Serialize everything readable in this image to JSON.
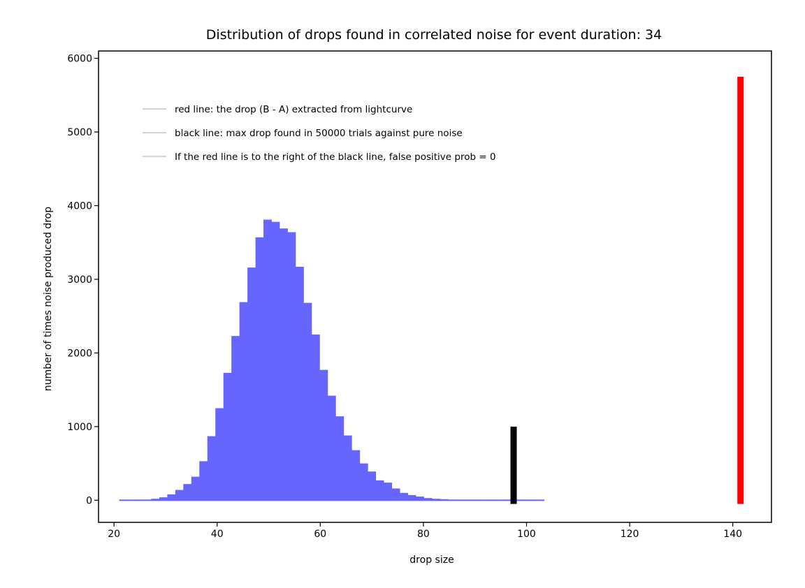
{
  "chart_data": {
    "type": "bar",
    "title": "Distribution of drops found in correlated noise for event duration: 34",
    "xlabel": "drop size",
    "ylabel": "number of times noise produced drop",
    "xlim": [
      17,
      147.5
    ],
    "ylim": [
      -300,
      6100
    ],
    "xticks": [
      20,
      40,
      60,
      80,
      100,
      120,
      140
    ],
    "yticks": [
      0,
      1000,
      2000,
      3000,
      4000,
      5000,
      6000
    ],
    "grid": false,
    "legend_position": "top-left",
    "colors": {
      "histogram": "#6666ff",
      "red_line": "#ff0000",
      "black_line": "#000000",
      "legend_line": "#d3d3d3"
    },
    "legend": [
      "red line: the drop (B - A) extracted from lightcurve",
      "black line: max drop found in 50000 trials against pure noise",
      "If the red line is to the right of the black line, false positive prob = 0"
    ],
    "histogram": {
      "bin_start": 21,
      "bin_width": 1.555,
      "values": [
        0,
        2,
        5,
        10,
        20,
        40,
        80,
        140,
        220,
        320,
        530,
        870,
        1250,
        1730,
        2230,
        2690,
        3160,
        3570,
        3810,
        3780,
        3690,
        3640,
        3170,
        2680,
        2250,
        1770,
        1420,
        1140,
        880,
        680,
        500,
        390,
        270,
        240,
        160,
        100,
        70,
        50,
        30,
        20,
        15,
        10,
        8,
        5,
        4,
        3,
        2,
        2,
        1,
        1,
        1,
        0,
        0
      ]
    },
    "lines": [
      {
        "name": "black line",
        "x": 97.5,
        "y_from": -50,
        "y_to": 1000,
        "color": "#000000"
      },
      {
        "name": "red line",
        "x": 141.5,
        "y_from": -50,
        "y_to": 5750,
        "color": "#ff0000"
      }
    ]
  }
}
